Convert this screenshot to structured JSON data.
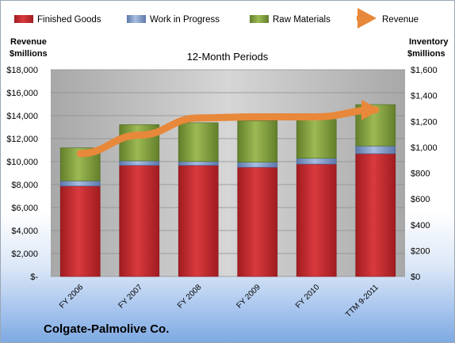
{
  "chart_data": {
    "type": "bar",
    "stacked": true,
    "subtitle": "12-Month Periods",
    "categories": [
      "FY 2006",
      "FY 2007",
      "FY 2008",
      "FY 2009",
      "FY 2010",
      "TTM 9-2011"
    ],
    "series": [
      {
        "name": "Finished Goods",
        "axis": "right",
        "color": "#c0282d",
        "values": [
          700,
          860,
          860,
          845,
          870,
          950
        ]
      },
      {
        "name": "Work in Progress",
        "axis": "right",
        "color": "#7f98c6",
        "values": [
          40,
          35,
          30,
          40,
          45,
          60
        ]
      },
      {
        "name": "Raw Materials",
        "axis": "right",
        "color": "#7e9d3a",
        "values": [
          255,
          280,
          300,
          320,
          300,
          320
        ]
      }
    ],
    "line_series": {
      "name": "Revenue",
      "axis": "left",
      "color": "#e8883a",
      "values": [
        10700,
        12300,
        13800,
        13900,
        13900,
        14500
      ]
    },
    "ylabel_left": [
      "Revenue",
      "$millions"
    ],
    "ylabel_right": [
      "Inventory",
      "$millions"
    ],
    "ylim_left": [
      0,
      18000
    ],
    "ylim_right": [
      0,
      1600
    ],
    "yticks_left": [
      "$-",
      "$2,000",
      "$4,000",
      "$6,000",
      "$8,000",
      "$10,000",
      "$12,000",
      "$14,000",
      "$16,000",
      "$18,000"
    ],
    "yticks_right": [
      "$0",
      "$200",
      "$400",
      "$600",
      "$800",
      "$1,000",
      "$1,200",
      "$1,400",
      "$1,600"
    ],
    "legend_position": "top",
    "company": "Colgate-Palmolive Co."
  }
}
